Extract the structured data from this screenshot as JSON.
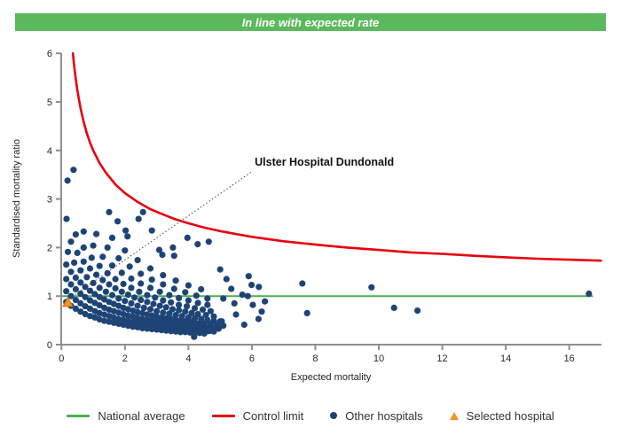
{
  "banner": {
    "text": "In line with expected rate",
    "bg_color": "#5cb85c",
    "fg_color": "#ffffff"
  },
  "chart_data": {
    "type": "scatter",
    "title": "In line with expected rate",
    "xlabel": "Expected mortality",
    "ylabel": "Standardised mortality ratio",
    "xlim": [
      0,
      17
    ],
    "ylim": [
      0,
      6
    ],
    "x_ticks": [
      0,
      2,
      4,
      6,
      8,
      10,
      12,
      14,
      16
    ],
    "y_ticks": [
      0,
      1,
      2,
      3,
      4,
      5,
      6
    ],
    "grid": false,
    "annotation": {
      "label": "Ulster Hospital Dundonald",
      "text_pos": [
        6.09,
        3.69
      ],
      "line_from": [
        5.97,
        3.55
      ],
      "line_to": [
        0.25,
        0.95
      ]
    },
    "national_average": {
      "y": 1,
      "x_start": 0.02,
      "x_end": 16.75,
      "color": "#4caf50"
    },
    "control_limit": {
      "color": "#e8000d",
      "points": [
        [
          0.36,
          6.0
        ],
        [
          0.4,
          5.74
        ],
        [
          0.45,
          5.47
        ],
        [
          0.5,
          5.24
        ],
        [
          0.55,
          5.05
        ],
        [
          0.6,
          4.87
        ],
        [
          0.7,
          4.59
        ],
        [
          0.8,
          4.35
        ],
        [
          0.9,
          4.16
        ],
        [
          1.0,
          4.0
        ],
        [
          1.2,
          3.74
        ],
        [
          1.4,
          3.54
        ],
        [
          1.7,
          3.3
        ],
        [
          2.0,
          3.12
        ],
        [
          2.4,
          2.94
        ],
        [
          2.8,
          2.79
        ],
        [
          3.2,
          2.68
        ],
        [
          3.6,
          2.58
        ],
        [
          4.0,
          2.5
        ],
        [
          4.5,
          2.41
        ],
        [
          5.0,
          2.34
        ],
        [
          5.5,
          2.28
        ],
        [
          6.0,
          2.22
        ],
        [
          7.0,
          2.13
        ],
        [
          8.0,
          2.06
        ],
        [
          9.0,
          2.0
        ],
        [
          10.0,
          1.95
        ],
        [
          11.0,
          1.9
        ],
        [
          12.0,
          1.87
        ],
        [
          13.0,
          1.83
        ],
        [
          14.0,
          1.8
        ],
        [
          15.0,
          1.77
        ],
        [
          16.0,
          1.75
        ],
        [
          17.0,
          1.73
        ]
      ]
    },
    "selected_hospital": {
      "name": "Ulster Hospital Dundonald",
      "point": [
        0.2,
        0.87
      ],
      "fill": "#f39323",
      "stroke": "#d1720b"
    },
    "other_hospitals": {
      "color": "#1e4476",
      "points": [
        [
          0.15,
          0.88
        ],
        [
          0.3,
          0.8
        ],
        [
          0.45,
          0.74
        ],
        [
          0.6,
          0.68
        ],
        [
          0.75,
          0.63
        ],
        [
          0.9,
          0.59
        ],
        [
          1.05,
          0.56
        ],
        [
          1.2,
          0.52
        ],
        [
          1.35,
          0.49
        ],
        [
          1.5,
          0.47
        ],
        [
          1.65,
          0.45
        ],
        [
          1.8,
          0.43
        ],
        [
          1.95,
          0.41
        ],
        [
          2.1,
          0.39
        ],
        [
          2.25,
          0.37
        ],
        [
          2.4,
          0.36
        ],
        [
          2.55,
          0.34
        ],
        [
          2.7,
          0.33
        ],
        [
          2.85,
          0.32
        ],
        [
          3.0,
          0.31
        ],
        [
          3.15,
          0.3
        ],
        [
          3.3,
          0.29
        ],
        [
          3.45,
          0.28
        ],
        [
          3.6,
          0.27
        ],
        [
          3.75,
          0.26
        ],
        [
          3.9,
          0.26
        ],
        [
          4.05,
          0.25
        ],
        [
          4.2,
          0.24
        ],
        [
          4.35,
          0.24
        ],
        [
          4.5,
          0.23
        ],
        [
          0.15,
          1.1
        ],
        [
          0.3,
          1.0
        ],
        [
          0.45,
          0.92
        ],
        [
          0.6,
          0.85
        ],
        [
          0.75,
          0.79
        ],
        [
          0.9,
          0.74
        ],
        [
          1.05,
          0.69
        ],
        [
          1.2,
          0.65
        ],
        [
          1.35,
          0.62
        ],
        [
          1.5,
          0.59
        ],
        [
          1.65,
          0.56
        ],
        [
          1.8,
          0.53
        ],
        [
          1.95,
          0.51
        ],
        [
          2.1,
          0.49
        ],
        [
          2.25,
          0.47
        ],
        [
          2.4,
          0.45
        ],
        [
          2.55,
          0.43
        ],
        [
          2.7,
          0.41
        ],
        [
          2.85,
          0.4
        ],
        [
          3.0,
          0.39
        ],
        [
          3.15,
          0.37
        ],
        [
          3.3,
          0.36
        ],
        [
          3.45,
          0.35
        ],
        [
          3.6,
          0.34
        ],
        [
          3.75,
          0.33
        ],
        [
          3.9,
          0.32
        ],
        [
          4.05,
          0.31
        ],
        [
          4.2,
          0.3
        ],
        [
          4.35,
          0.3
        ],
        [
          4.5,
          0.29
        ],
        [
          4.65,
          0.28
        ],
        [
          4.8,
          0.27
        ],
        [
          0.15,
          1.35
        ],
        [
          0.3,
          1.24
        ],
        [
          0.45,
          1.14
        ],
        [
          0.6,
          1.05
        ],
        [
          0.75,
          0.98
        ],
        [
          0.9,
          0.91
        ],
        [
          1.05,
          0.86
        ],
        [
          1.2,
          0.81
        ],
        [
          1.35,
          0.76
        ],
        [
          1.5,
          0.72
        ],
        [
          1.65,
          0.69
        ],
        [
          1.8,
          0.66
        ],
        [
          1.95,
          0.63
        ],
        [
          2.1,
          0.6
        ],
        [
          2.25,
          0.58
        ],
        [
          2.4,
          0.55
        ],
        [
          2.55,
          0.53
        ],
        [
          2.7,
          0.51
        ],
        [
          2.85,
          0.49
        ],
        [
          3.0,
          0.48
        ],
        [
          3.15,
          0.46
        ],
        [
          3.3,
          0.45
        ],
        [
          3.45,
          0.43
        ],
        [
          3.6,
          0.42
        ],
        [
          3.75,
          0.41
        ],
        [
          3.9,
          0.4
        ],
        [
          4.05,
          0.39
        ],
        [
          4.2,
          0.38
        ],
        [
          4.35,
          0.37
        ],
        [
          4.5,
          0.36
        ],
        [
          4.65,
          0.35
        ],
        [
          4.8,
          0.34
        ],
        [
          4.95,
          0.33
        ],
        [
          0.15,
          1.65
        ],
        [
          0.3,
          1.5
        ],
        [
          0.45,
          1.38
        ],
        [
          0.6,
          1.28
        ],
        [
          0.75,
          1.19
        ],
        [
          0.9,
          1.11
        ],
        [
          1.05,
          1.04
        ],
        [
          1.2,
          0.98
        ],
        [
          1.35,
          0.93
        ],
        [
          1.5,
          0.88
        ],
        [
          1.65,
          0.84
        ],
        [
          1.8,
          0.8
        ],
        [
          1.95,
          0.76
        ],
        [
          2.1,
          0.73
        ],
        [
          2.25,
          0.7
        ],
        [
          2.4,
          0.67
        ],
        [
          2.55,
          0.65
        ],
        [
          2.7,
          0.62
        ],
        [
          2.85,
          0.6
        ],
        [
          3.0,
          0.58
        ],
        [
          3.15,
          0.56
        ],
        [
          3.3,
          0.54
        ],
        [
          3.45,
          0.53
        ],
        [
          3.6,
          0.51
        ],
        [
          3.75,
          0.5
        ],
        [
          3.9,
          0.48
        ],
        [
          4.05,
          0.47
        ],
        [
          4.2,
          0.46
        ],
        [
          4.35,
          0.44
        ],
        [
          4.5,
          0.43
        ],
        [
          4.7,
          0.42
        ],
        [
          4.9,
          0.4
        ],
        [
          5.1,
          0.39
        ],
        [
          0.2,
          1.91
        ],
        [
          0.4,
          1.69
        ],
        [
          0.6,
          1.53
        ],
        [
          0.8,
          1.39
        ],
        [
          1.0,
          1.27
        ],
        [
          1.2,
          1.17
        ],
        [
          1.4,
          1.09
        ],
        [
          1.6,
          1.02
        ],
        [
          1.8,
          0.95
        ],
        [
          2.0,
          0.9
        ],
        [
          2.2,
          0.85
        ],
        [
          2.4,
          0.8
        ],
        [
          2.6,
          0.76
        ],
        [
          2.8,
          0.73
        ],
        [
          3.0,
          0.69
        ],
        [
          3.2,
          0.66
        ],
        [
          3.4,
          0.64
        ],
        [
          3.6,
          0.61
        ],
        [
          3.8,
          0.59
        ],
        [
          4.0,
          0.56
        ],
        [
          4.2,
          0.54
        ],
        [
          4.4,
          0.53
        ],
        [
          4.6,
          0.51
        ],
        [
          4.8,
          0.49
        ],
        [
          5.0,
          0.48
        ],
        [
          0.3,
          2.12
        ],
        [
          0.5,
          1.89
        ],
        [
          0.7,
          1.71
        ],
        [
          0.9,
          1.57
        ],
        [
          1.1,
          1.44
        ],
        [
          1.3,
          1.33
        ],
        [
          1.5,
          1.24
        ],
        [
          1.7,
          1.16
        ],
        [
          1.9,
          1.09
        ],
        [
          2.1,
          1.03
        ],
        [
          2.3,
          0.97
        ],
        [
          2.5,
          0.92
        ],
        [
          2.7,
          0.88
        ],
        [
          2.9,
          0.84
        ],
        [
          3.1,
          0.8
        ],
        [
          3.3,
          0.77
        ],
        [
          3.5,
          0.73
        ],
        [
          3.7,
          0.71
        ],
        [
          3.9,
          0.68
        ],
        [
          4.1,
          0.65
        ],
        [
          4.3,
          0.63
        ],
        [
          4.55,
          0.61
        ],
        [
          4.8,
          0.58
        ],
        [
          0.45,
          2.27
        ],
        [
          0.7,
          2.0
        ],
        [
          0.95,
          1.79
        ],
        [
          1.2,
          1.62
        ],
        [
          1.45,
          1.47
        ],
        [
          1.7,
          1.35
        ],
        [
          1.95,
          1.25
        ],
        [
          2.2,
          1.17
        ],
        [
          2.45,
          1.09
        ],
        [
          2.7,
          1.02
        ],
        [
          2.95,
          0.97
        ],
        [
          3.2,
          0.91
        ],
        [
          3.45,
          0.87
        ],
        [
          3.7,
          0.82
        ],
        [
          3.95,
          0.79
        ],
        [
          4.2,
          0.75
        ],
        [
          4.45,
          0.72
        ],
        [
          4.7,
          0.69
        ],
        [
          0.7,
          2.33
        ],
        [
          1.0,
          2.04
        ],
        [
          1.3,
          1.81
        ],
        [
          1.6,
          1.63
        ],
        [
          1.9,
          1.48
        ],
        [
          2.2,
          1.36
        ],
        [
          2.5,
          1.26
        ],
        [
          2.8,
          1.17
        ],
        [
          3.1,
          1.09
        ],
        [
          3.4,
          1.02
        ],
        [
          3.7,
          0.96
        ],
        [
          4.0,
          0.91
        ],
        [
          4.3,
          0.86
        ],
        [
          4.6,
          0.82
        ],
        [
          1.1,
          2.28
        ],
        [
          1.45,
          2.0
        ],
        [
          1.8,
          1.78
        ],
        [
          2.15,
          1.61
        ],
        [
          2.5,
          1.46
        ],
        [
          2.85,
          1.34
        ],
        [
          3.2,
          1.24
        ],
        [
          3.55,
          1.15
        ],
        [
          3.9,
          1.08
        ],
        [
          4.25,
          1.01
        ],
        [
          4.6,
          0.95
        ],
        [
          1.6,
          2.2
        ],
        [
          2.0,
          1.94
        ],
        [
          2.4,
          1.74
        ],
        [
          2.8,
          1.57
        ],
        [
          3.2,
          1.43
        ],
        [
          3.6,
          1.32
        ],
        [
          4.0,
          1.22
        ],
        [
          4.4,
          1.14
        ],
        [
          0.19,
          3.38
        ],
        [
          0.38,
          3.6
        ],
        [
          0.16,
          2.59
        ],
        [
          1.5,
          2.73
        ],
        [
          1.77,
          2.54
        ],
        [
          2.02,
          2.35
        ],
        [
          2.08,
          2.23
        ],
        [
          2.57,
          2.73
        ],
        [
          2.43,
          2.59
        ],
        [
          2.85,
          2.35
        ],
        [
          3.08,
          1.95
        ],
        [
          3.18,
          1.85
        ],
        [
          3.51,
          2.0
        ],
        [
          3.55,
          1.83
        ],
        [
          3.97,
          2.2
        ],
        [
          4.29,
          2.07
        ],
        [
          4.64,
          2.12
        ],
        [
          4.18,
          0.16
        ],
        [
          5.0,
          1.55
        ],
        [
          5.2,
          1.35
        ],
        [
          5.35,
          1.15
        ],
        [
          5.1,
          0.95
        ],
        [
          5.45,
          0.85
        ],
        [
          5.5,
          0.62
        ],
        [
          5.05,
          0.48
        ],
        [
          5.9,
          1.41
        ],
        [
          5.99,
          1.23
        ],
        [
          6.22,
          1.19
        ],
        [
          5.7,
          1.03
        ],
        [
          5.87,
          1.0
        ],
        [
          6.03,
          0.82
        ],
        [
          6.41,
          0.89
        ],
        [
          6.31,
          0.68
        ],
        [
          6.21,
          0.53
        ],
        [
          5.76,
          0.41
        ],
        [
          7.59,
          1.26
        ],
        [
          7.74,
          0.65
        ],
        [
          9.77,
          1.18
        ],
        [
          10.48,
          0.76
        ],
        [
          11.22,
          0.7
        ],
        [
          16.62,
          1.05
        ]
      ]
    }
  },
  "legend": {
    "items": [
      {
        "label": "National average",
        "marker": "line",
        "color": "#4caf50"
      },
      {
        "label": "Control limit",
        "marker": "line",
        "color": "#e8000d"
      },
      {
        "label": "Other hospitals",
        "marker": "dot",
        "color": "#1e4476"
      },
      {
        "label": "Selected hospital",
        "marker": "triangle",
        "color": "#f39323"
      }
    ]
  },
  "colors": {
    "axis": "#8f8f8f",
    "text": "#262626",
    "annotation_line": "#444444"
  }
}
